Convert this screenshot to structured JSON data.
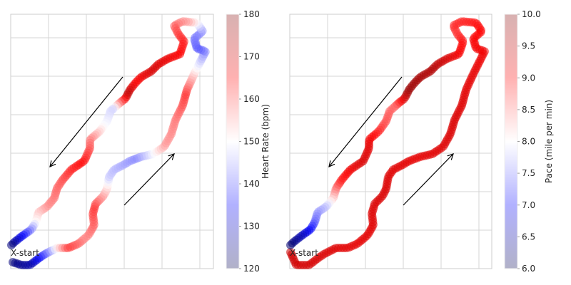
{
  "chart_data": [
    {
      "type": "scatter",
      "title": "",
      "xlabel": "",
      "ylabel": "",
      "grid": true,
      "start_label": "X-start",
      "colorbar": {
        "label": "Heart Rate (bpm)",
        "range": [
          120,
          180
        ],
        "ticks": [
          "120",
          "130",
          "140",
          "150",
          "160",
          "170",
          "180"
        ],
        "colormap": "seismic",
        "colors": {
          "low": "#00004c",
          "mid_low": "#0000ff",
          "mid": "#ffffff",
          "mid_high": "#ff0000",
          "high": "#800000"
        }
      },
      "route_values": [
        {
          "t": 0.0,
          "v": 124
        },
        {
          "t": 0.03,
          "v": 128
        },
        {
          "t": 0.06,
          "v": 143
        },
        {
          "t": 0.09,
          "v": 162
        },
        {
          "t": 0.12,
          "v": 157
        },
        {
          "t": 0.17,
          "v": 162
        },
        {
          "t": 0.22,
          "v": 147
        },
        {
          "t": 0.27,
          "v": 143
        },
        {
          "t": 0.32,
          "v": 156
        },
        {
          "t": 0.36,
          "v": 158
        },
        {
          "t": 0.4,
          "v": 162
        },
        {
          "t": 0.44,
          "v": 150
        },
        {
          "t": 0.48,
          "v": 140
        },
        {
          "t": 0.51,
          "v": 143
        },
        {
          "t": 0.54,
          "v": 155
        },
        {
          "t": 0.58,
          "v": 162
        },
        {
          "t": 0.62,
          "v": 166
        },
        {
          "t": 0.66,
          "v": 170
        },
        {
          "t": 0.69,
          "v": 165
        },
        {
          "t": 0.71,
          "v": 173
        },
        {
          "t": 0.74,
          "v": 147
        },
        {
          "t": 0.77,
          "v": 150
        },
        {
          "t": 0.8,
          "v": 158
        },
        {
          "t": 0.84,
          "v": 165
        },
        {
          "t": 0.88,
          "v": 160
        },
        {
          "t": 0.92,
          "v": 157
        },
        {
          "t": 0.95,
          "v": 150
        },
        {
          "t": 0.98,
          "v": 135
        },
        {
          "t": 1.0,
          "v": 124
        }
      ]
    },
    {
      "type": "scatter",
      "title": "",
      "xlabel": "",
      "ylabel": "",
      "grid": true,
      "start_label": "X-start",
      "colorbar": {
        "label": "Pace (mile per min)",
        "range": [
          6.0,
          10.0
        ],
        "ticks": [
          "6.0",
          "6.5",
          "7.0",
          "7.5",
          "8.0",
          "8.5",
          "9.0",
          "9.5",
          "10.0"
        ],
        "colormap": "seismic",
        "colors": {
          "low": "#00004c",
          "mid_low": "#0000ff",
          "mid": "#ffffff",
          "mid_high": "#ff0000",
          "high": "#800000"
        }
      },
      "route_values": [
        {
          "t": 0.0,
          "v": 9.4
        },
        {
          "t": 0.06,
          "v": 9.3
        },
        {
          "t": 0.12,
          "v": 9.2
        },
        {
          "t": 0.2,
          "v": 9.3
        },
        {
          "t": 0.28,
          "v": 9.2
        },
        {
          "t": 0.36,
          "v": 9.3
        },
        {
          "t": 0.44,
          "v": 9.2
        },
        {
          "t": 0.52,
          "v": 9.0
        },
        {
          "t": 0.58,
          "v": 8.8
        },
        {
          "t": 0.62,
          "v": 9.1
        },
        {
          "t": 0.66,
          "v": 9.6
        },
        {
          "t": 0.71,
          "v": 9.8
        },
        {
          "t": 0.74,
          "v": 8.6
        },
        {
          "t": 0.77,
          "v": 8.7
        },
        {
          "t": 0.81,
          "v": 9.2
        },
        {
          "t": 0.84,
          "v": 9.3
        },
        {
          "t": 0.88,
          "v": 8.9
        },
        {
          "t": 0.92,
          "v": 7.8
        },
        {
          "t": 0.95,
          "v": 7.4
        },
        {
          "t": 0.98,
          "v": 6.6
        },
        {
          "t": 1.0,
          "v": 6.2
        }
      ]
    }
  ]
}
